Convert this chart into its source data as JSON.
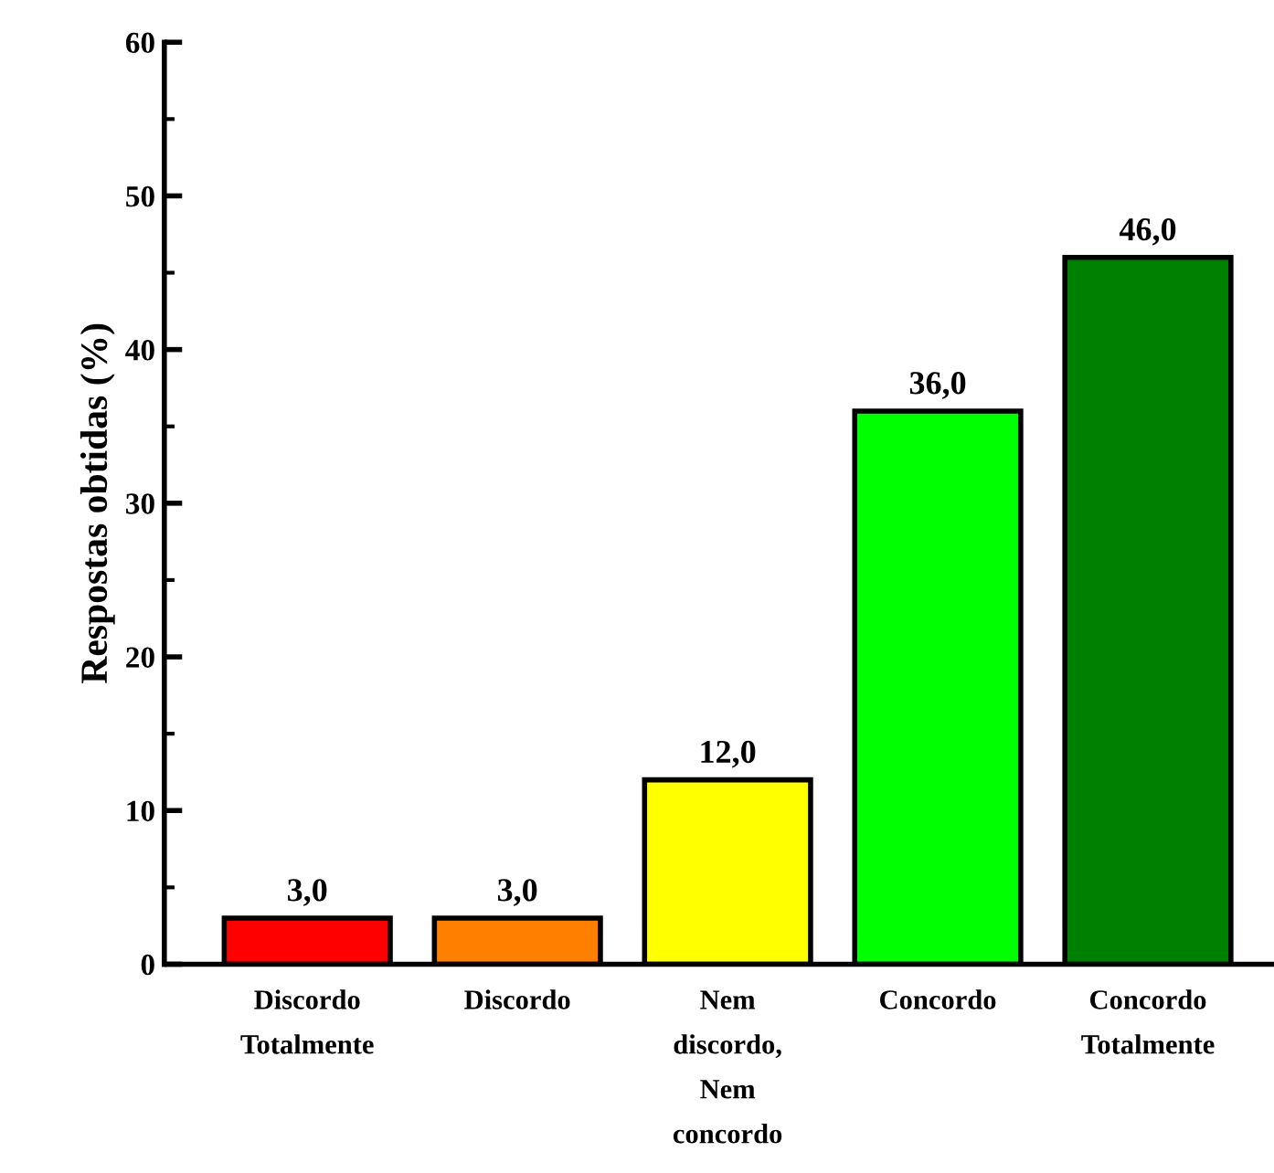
{
  "chart_data": {
    "type": "bar",
    "ylabel": "Respostas obtidas (%)",
    "categories": [
      "Discordo\nTotalmente",
      "Discordo",
      "Nem\ndiscordo,\nNem\nconcordo",
      "Concordo",
      "Concordo\nTotalmente"
    ],
    "values": [
      3.0,
      3.0,
      12.0,
      36.0,
      46.0
    ],
    "colors": [
      "#ff0000",
      "#ff8000",
      "#ffff00",
      "#00ff00",
      "#008000"
    ],
    "value_labels": [
      "3,0",
      "3,0",
      "12,0",
      "36,0",
      "46,0"
    ],
    "ylim": [
      0,
      60
    ],
    "yticks": [
      0,
      10,
      20,
      30,
      40,
      50,
      60
    ],
    "grid": false,
    "legend": false
  }
}
